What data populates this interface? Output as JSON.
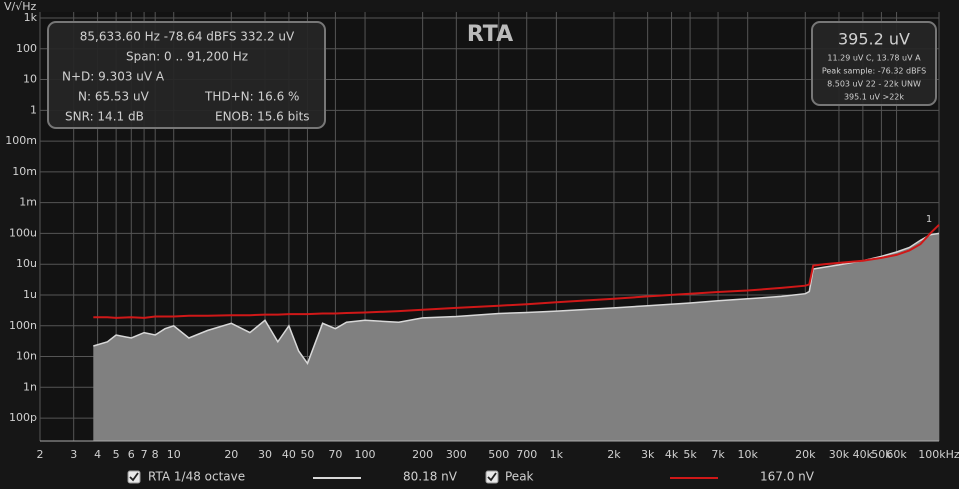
{
  "chart_data": {
    "type": "area",
    "title": "RTA",
    "ylabel": "V/√Hz",
    "xscale": "log",
    "yscale": "log",
    "grid": true,
    "xlim": [
      2,
      100000
    ],
    "ylim": [
      1.8e-11,
      1000
    ],
    "xticks": [
      2,
      3,
      4,
      5,
      6,
      7,
      8,
      10,
      20,
      30,
      40,
      50,
      70,
      100,
      200,
      300,
      500,
      700,
      {
        "value": 1000,
        "label": "1k"
      },
      {
        "value": 2000,
        "label": "2k"
      },
      {
        "value": 3000,
        "label": "3k"
      },
      {
        "value": 4000,
        "label": "4k"
      },
      {
        "value": 5000,
        "label": "5k"
      },
      {
        "value": 7000,
        "label": "7k"
      },
      {
        "value": 10000,
        "label": "10k"
      },
      {
        "value": 20000,
        "label": "20k"
      },
      {
        "value": 30000,
        "label": "30k"
      },
      {
        "value": 40000,
        "label": "40k"
      },
      {
        "value": 50000,
        "label": "50k"
      },
      {
        "value": 60000,
        "label": "60k"
      },
      {
        "value": 100000,
        "label": "100kHz"
      }
    ],
    "yticks": [
      {
        "value": 1000,
        "label": "1k"
      },
      100,
      10,
      1,
      {
        "value": 0.1,
        "label": "100m"
      },
      {
        "value": 0.01,
        "label": "10m"
      },
      {
        "value": 0.001,
        "label": "1m"
      },
      {
        "value": 0.0001,
        "label": "100u"
      },
      {
        "value": 1e-05,
        "label": "10u"
      },
      {
        "value": 1e-06,
        "label": "1u"
      },
      {
        "value": 1e-07,
        "label": "100n"
      },
      {
        "value": 1e-08,
        "label": "10n"
      },
      {
        "value": 1e-09,
        "label": "1n"
      },
      {
        "value": 1e-10,
        "label": "100p"
      }
    ],
    "x": [
      3.8,
      4.5,
      5,
      6,
      7,
      8,
      9,
      10,
      12,
      15,
      20,
      25,
      30,
      35,
      40,
      45,
      50,
      60,
      70,
      80,
      100,
      150,
      200,
      300,
      500,
      700,
      1000,
      2000,
      3000,
      5000,
      7000,
      10000,
      15000,
      20000,
      21000,
      22000,
      25000,
      30000,
      40000,
      50000,
      60000,
      70000,
      80000,
      90000,
      100000
    ],
    "series": [
      {
        "name": "RTA 1/48 octave",
        "color": "#d8d8d8",
        "fill": "#808080",
        "legend_value": "80.18 nV",
        "values": [
          2.2e-08,
          3e-08,
          5e-08,
          4e-08,
          6e-08,
          5e-08,
          8e-08,
          1e-07,
          4e-08,
          7e-08,
          1.2e-07,
          6e-08,
          1.5e-07,
          3e-08,
          1e-07,
          1.5e-08,
          6e-09,
          1.2e-07,
          8e-08,
          1.3e-07,
          1.5e-07,
          1.3e-07,
          1.8e-07,
          2e-07,
          2.5e-07,
          2.7e-07,
          3e-07,
          3.8e-07,
          4.5e-07,
          5.5e-07,
          6.5e-07,
          7.5e-07,
          9e-07,
          1.1e-06,
          1.3e-06,
          7e-06,
          8e-06,
          9.5e-06,
          1.3e-05,
          1.8e-05,
          2.5e-05,
          3.5e-05,
          6e-05,
          9e-05,
          0.0001
        ]
      },
      {
        "name": "Peak",
        "color": "#d01818",
        "legend_value": "167.0 nV",
        "values": [
          1.9e-07,
          1.9e-07,
          1.8e-07,
          1.9e-07,
          1.8e-07,
          2e-07,
          2e-07,
          2e-07,
          2.1e-07,
          2.1e-07,
          2.2e-07,
          2.2e-07,
          2.3e-07,
          2.3e-07,
          2.4e-07,
          2.4e-07,
          2.4e-07,
          2.5e-07,
          2.5e-07,
          2.6e-07,
          2.7e-07,
          3e-07,
          3.3e-07,
          3.8e-07,
          4.5e-07,
          5e-07,
          5.8e-07,
          7.5e-07,
          9e-07,
          1.1e-06,
          1.25e-06,
          1.4e-06,
          1.7e-06,
          2e-06,
          2.2e-06,
          9e-06,
          1e-05,
          1.1e-05,
          1.3e-05,
          1.6e-05,
          2e-05,
          2.8e-05,
          4.5e-05,
          0.0001,
          0.00019
        ]
      }
    ],
    "annotations": [
      "1"
    ]
  },
  "info_panel": {
    "line1": "85,633.60 Hz  -78.64 dBFS  332.2 uV",
    "span": "Span: 0 .. 91,200 Hz",
    "nd": "N+D: 9.303 uV A",
    "n": "N: 65.53 uV",
    "thdn": "THD+N: 16.6 %",
    "snr": "SNR:  14.1 dB",
    "enob": "ENOB: 15.6 bits"
  },
  "level_panel": {
    "value": "395.2 uV",
    "lines": [
      "11.29 uV C, 13.78 uV A",
      "Peak sample: -76.32 dBFS",
      "8.503 uV 22 - 22k UNW",
      "395.1 uV >22k"
    ]
  }
}
